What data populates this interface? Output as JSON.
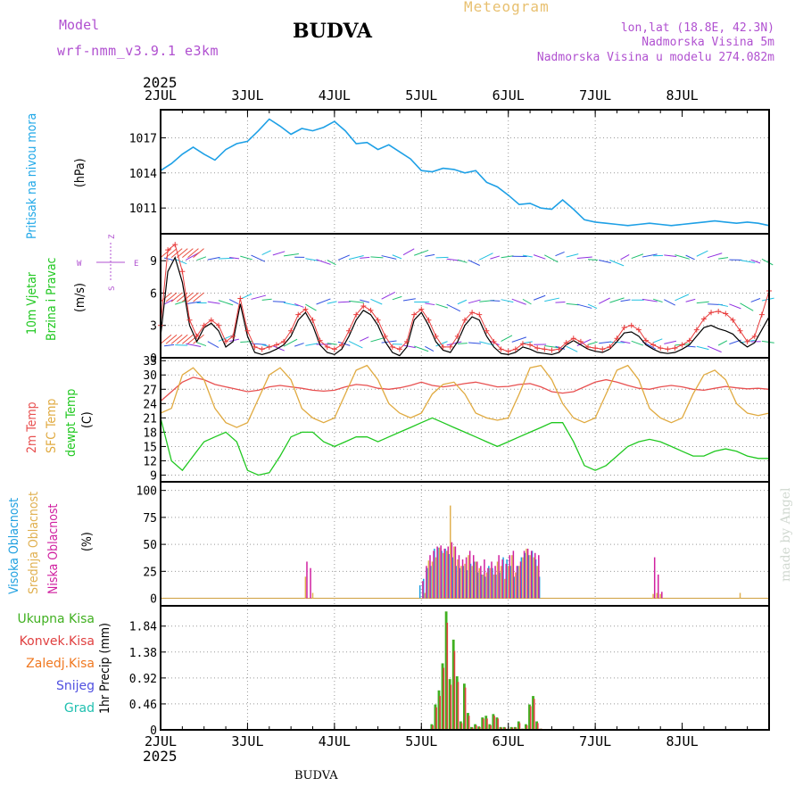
{
  "header": {
    "model_label": "Model",
    "model_name": "wrf-nmm_v3.9.1 e3km",
    "station": "BUDVA",
    "product": "Meteogram",
    "coords": "lon,lat (18.8E, 42.3N)",
    "elevation": "Nadmorska Visina 5m",
    "model_elevation": "Nadmorska Visina u modelu 274.082m",
    "footer_station": "BUDVA",
    "watermark": "made by Angel"
  },
  "time_axis": {
    "year": "2025",
    "labels": [
      "2JUL",
      "3JUL",
      "4JUL",
      "5JUL",
      "6JUL",
      "7JUL",
      "8JUL"
    ]
  },
  "colors": {
    "pressure": "#1ea0e6",
    "wind_speed": "#000000",
    "wind_gust": "#e83c3c",
    "temp2m": "#e85050",
    "sfc_temp": "#e0aa40",
    "dewpoint": "#20c820",
    "cloud_high": "#20a0e0",
    "cloud_mid": "#e0b050",
    "cloud_low": "#d020a0",
    "precip_total": "#40b020",
    "precip_conv": "#e04040",
    "precip_frz": "#f07820",
    "snow": "#5050e0",
    "graupel": "#20c0b0",
    "model_label": "#b050d0",
    "product": "#e8c070"
  },
  "panels": {
    "pressure": {
      "label": "Pritisak na nivou mora",
      "unit": "(hPa)",
      "ticks": [
        "1017",
        "1014",
        "1011"
      ]
    },
    "wind": {
      "label1": "10m Vjetar",
      "label2": "Brzina i Pravac",
      "unit": "(m/s)",
      "ticks": [
        "9",
        "6",
        "3",
        "0"
      ],
      "compass_z": "Z",
      "compass_w": "W",
      "compass_e": "E",
      "compass_s": "S"
    },
    "temp": {
      "label1": "2m Temp",
      "label2": "SFC Temp",
      "label3": "dewpt Temp",
      "unit": "(C)",
      "ticks": [
        "33",
        "30",
        "27",
        "24",
        "21",
        "18",
        "15",
        "12",
        "9"
      ]
    },
    "cloud": {
      "label1": "Visoka Oblacnost",
      "label2": "Srednja Oblacnost",
      "label3": "Niska Oblacnost",
      "unit": "(%)",
      "ticks": [
        "100",
        "75",
        "50",
        "25",
        "0"
      ]
    },
    "precip": {
      "legend": [
        "Ukupna Kisa",
        "Konvek.Kisa",
        "Zaledj.Kisa",
        "Snijeg",
        "Grad"
      ],
      "label": "1hr Precip (mm)",
      "ticks": [
        "1.84",
        "1.38",
        "0.92",
        "0.46",
        "0"
      ]
    }
  },
  "chart_data": [
    {
      "type": "line",
      "title": "Pritisak na nivou mora",
      "ylabel": "(hPa)",
      "ylim": [
        1008.8,
        1019.4
      ],
      "x_hours": [
        0,
        3,
        6,
        9,
        12,
        15,
        18,
        21,
        24,
        27,
        30,
        33,
        36,
        39,
        42,
        45,
        48,
        51,
        54,
        57,
        60,
        63,
        66,
        69,
        72,
        75,
        78,
        81,
        84,
        87,
        90,
        93,
        96,
        99,
        102,
        105,
        108,
        111,
        114,
        117,
        120,
        123,
        126,
        129,
        132,
        135,
        138,
        141,
        144,
        147,
        150,
        153,
        156,
        159,
        162,
        165,
        168
      ],
      "series": [
        {
          "name": "SLP",
          "values": [
            1014.2,
            1014.8,
            1015.6,
            1016.2,
            1015.6,
            1015.1,
            1016.0,
            1016.5,
            1016.7,
            1017.6,
            1018.6,
            1018.0,
            1017.3,
            1017.8,
            1017.6,
            1017.9,
            1018.4,
            1017.6,
            1016.5,
            1016.6,
            1016.0,
            1016.4,
            1015.8,
            1015.2,
            1014.2,
            1014.1,
            1014.4,
            1014.3,
            1014.0,
            1014.2,
            1013.2,
            1012.8,
            1012.1,
            1011.3,
            1011.4,
            1011.0,
            1010.9,
            1011.7,
            1010.9,
            1010.0,
            1009.8,
            1009.7,
            1009.6,
            1009.5,
            1009.6,
            1009.7,
            1009.6,
            1009.5,
            1009.6,
            1009.7,
            1009.8,
            1009.9,
            1009.8,
            1009.7,
            1009.8,
            1009.7,
            1009.5
          ]
        }
      ]
    },
    {
      "type": "line",
      "title": "10m Vjetar Brzina i Pravac",
      "ylabel": "(m/s)",
      "ylim": [
        0,
        11.5
      ],
      "x_hours": [
        0,
        2,
        4,
        6,
        8,
        10,
        12,
        14,
        16,
        18,
        20,
        22,
        24,
        26,
        28,
        30,
        32,
        34,
        36,
        38,
        40,
        42,
        44,
        46,
        48,
        50,
        52,
        54,
        56,
        58,
        60,
        62,
        64,
        66,
        68,
        70,
        72,
        74,
        76,
        78,
        80,
        82,
        84,
        86,
        88,
        90,
        92,
        94,
        96,
        98,
        100,
        102,
        104,
        106,
        108,
        110,
        112,
        114,
        116,
        118,
        120,
        122,
        124,
        126,
        128,
        130,
        132,
        134,
        136,
        138,
        140,
        142,
        144,
        146,
        148,
        150,
        152,
        154,
        156,
        158,
        160,
        162,
        164,
        166,
        168
      ],
      "series": [
        {
          "name": "speed",
          "values": [
            2,
            8,
            9.3,
            7,
            3,
            1.5,
            2.8,
            3.2,
            2.5,
            1,
            1.5,
            5,
            2,
            0.5,
            0.3,
            0.5,
            0.8,
            1.2,
            2,
            3.5,
            4.2,
            3,
            1.2,
            0.5,
            0.3,
            0.8,
            2,
            3.5,
            4.4,
            4,
            3,
            1.5,
            0.5,
            0.2,
            1,
            3.5,
            4.2,
            3,
            1.5,
            0.7,
            0.5,
            1.5,
            3,
            3.8,
            3.5,
            2,
            1,
            0.4,
            0.3,
            0.5,
            1,
            0.8,
            0.5,
            0.4,
            0.3,
            0.5,
            1.2,
            1.6,
            1.2,
            0.8,
            0.6,
            0.5,
            0.8,
            1.5,
            2.3,
            2.4,
            2,
            1.2,
            0.8,
            0.5,
            0.4,
            0.5,
            0.8,
            1.2,
            2,
            2.8,
            3,
            2.7,
            2.5,
            2.2,
            1.5,
            1,
            1.4,
            2.6,
            3.8
          ]
        },
        {
          "name": "gust",
          "values": [
            3,
            10,
            10.5,
            8,
            3.5,
            2,
            3,
            3.5,
            3,
            1.5,
            2,
            5.5,
            2.5,
            1,
            0.8,
            1,
            1.2,
            1.5,
            2.5,
            4,
            4.5,
            3.5,
            1.6,
            1,
            0.8,
            1.2,
            2.5,
            4,
            4.8,
            4.4,
            3.5,
            2,
            1,
            0.8,
            1.5,
            4,
            4.5,
            3.5,
            2,
            1,
            1,
            2,
            3.5,
            4.2,
            4,
            2.5,
            1.5,
            0.8,
            0.6,
            0.8,
            1.3,
            1.2,
            0.9,
            0.8,
            0.7,
            0.8,
            1.4,
            1.8,
            1.5,
            1,
            0.9,
            0.8,
            1,
            1.8,
            2.8,
            3,
            2.6,
            1.6,
            1.2,
            0.9,
            0.8,
            0.9,
            1.2,
            1.6,
            2.6,
            3.6,
            4.2,
            4.3,
            4.1,
            3.5,
            2.5,
            1.5,
            2,
            4,
            6.2
          ]
        }
      ]
    },
    {
      "type": "line",
      "title": "2m Temp / SFC Temp / dewpt Temp",
      "ylabel": "(C)",
      "ylim": [
        7.6,
        33.6
      ],
      "x_hours": [
        0,
        3,
        6,
        9,
        12,
        15,
        18,
        21,
        24,
        27,
        30,
        33,
        36,
        39,
        42,
        45,
        48,
        51,
        54,
        57,
        60,
        63,
        66,
        69,
        72,
        75,
        78,
        81,
        84,
        87,
        90,
        93,
        96,
        99,
        102,
        105,
        108,
        111,
        114,
        117,
        120,
        123,
        126,
        129,
        132,
        135,
        138,
        141,
        144,
        147,
        150,
        153,
        156,
        159,
        162,
        165,
        168
      ],
      "series": [
        {
          "name": "2m Temp",
          "values": [
            24.5,
            26.5,
            28.5,
            29.5,
            29,
            28,
            27.5,
            27,
            26.5,
            26.8,
            27.5,
            27.8,
            27.5,
            27.2,
            26.8,
            26.6,
            26.8,
            27.5,
            28,
            27.8,
            27.2,
            27,
            27.3,
            27.8,
            28.5,
            27.8,
            27.5,
            27.8,
            28.2,
            28.5,
            28,
            27.5,
            27.6,
            28,
            28.2,
            27.5,
            26.5,
            26.2,
            26.5,
            27.5,
            28.5,
            29,
            28.5,
            27.8,
            27.2,
            27,
            27.5,
            27.8,
            27.5,
            27,
            26.8,
            27.2,
            27.6,
            27.3,
            27.1,
            27.2,
            27.0
          ]
        },
        {
          "name": "SFC Temp",
          "values": [
            22,
            23,
            30,
            31.5,
            29,
            23,
            20,
            19,
            20,
            25,
            30,
            31.5,
            29,
            23,
            21,
            20,
            21,
            26,
            31,
            32,
            29,
            24,
            22,
            21,
            22,
            26,
            28,
            28.5,
            26,
            22,
            21,
            20.5,
            21,
            26,
            31.5,
            32,
            29,
            24,
            21,
            20,
            21,
            26,
            31,
            32,
            29,
            23,
            21,
            20,
            21,
            26,
            30,
            31,
            29,
            24,
            22,
            21.5,
            22
          ]
        },
        {
          "name": "dewpt Temp",
          "values": [
            21,
            12,
            10,
            13,
            16,
            17,
            18,
            16,
            10,
            9,
            9.5,
            13,
            17,
            18,
            18,
            16,
            15,
            16,
            17,
            17,
            16,
            17,
            18,
            19,
            20,
            21,
            20,
            19,
            18,
            17,
            16,
            15,
            16,
            17,
            18,
            19,
            20,
            20,
            16,
            11,
            10,
            11,
            13,
            15,
            16,
            16.5,
            16,
            15,
            14,
            13,
            13,
            14,
            14.5,
            14,
            13,
            12.5,
            12.5
          ]
        }
      ]
    },
    {
      "type": "bar",
      "title": "Visoka / Srednja / Niska Oblacnost",
      "ylabel": "(%)",
      "ylim": [
        0,
        100
      ],
      "x_hours": [
        40,
        41,
        42,
        72,
        73,
        74,
        75,
        76,
        77,
        78,
        79,
        80,
        81,
        82,
        83,
        84,
        85,
        86,
        87,
        88,
        89,
        90,
        91,
        92,
        93,
        94,
        95,
        96,
        97,
        98,
        99,
        100,
        101,
        102,
        103,
        104,
        105,
        106,
        136,
        137,
        138,
        160
      ],
      "series": [
        {
          "name": "Visoka Oblacnost",
          "values": [
            0,
            0,
            0,
            12,
            18,
            28,
            30,
            46,
            47,
            44,
            46,
            41,
            38,
            30,
            28,
            30,
            26,
            32,
            34,
            24,
            22,
            20,
            30,
            28,
            22,
            24,
            38,
            36,
            30,
            20,
            30,
            38,
            42,
            40,
            44,
            36,
            20,
            0,
            0,
            0,
            0,
            0
          ]
        },
        {
          "name": "Srednja Oblacnost",
          "values": [
            20,
            0,
            5,
            0,
            5,
            35,
            34,
            38,
            47,
            42,
            44,
            86,
            48,
            36,
            30,
            32,
            40,
            30,
            34,
            28,
            22,
            24,
            28,
            22,
            34,
            30,
            18,
            30,
            40,
            24,
            30,
            38,
            46,
            40,
            38,
            30,
            0,
            0,
            4,
            5,
            4,
            5
          ]
        },
        {
          "name": "Niska Oblacnost",
          "values": [
            34,
            28,
            0,
            16,
            30,
            40,
            44,
            48,
            49,
            46,
            48,
            52,
            48,
            40,
            36,
            38,
            44,
            40,
            34,
            30,
            36,
            28,
            34,
            30,
            40,
            36,
            32,
            40,
            44,
            30,
            34,
            44,
            46,
            44,
            42,
            40,
            0,
            0,
            38,
            22,
            6,
            0
          ]
        }
      ]
    },
    {
      "type": "bar",
      "title": "1hr Precip",
      "ylabel": "(mm)",
      "ylim": [
        0,
        2.2
      ],
      "x_hours": [
        75,
        76,
        77,
        78,
        79,
        80,
        81,
        82,
        83,
        84,
        85,
        86,
        87,
        88,
        89,
        90,
        91,
        92,
        93,
        94,
        95,
        96,
        97,
        98,
        99,
        100,
        101,
        102,
        103,
        104,
        105,
        106
      ],
      "series": [
        {
          "name": "Ukupna Kisa",
          "values": [
            0.1,
            0.45,
            0.7,
            1.18,
            2.1,
            0.9,
            1.6,
            0.95,
            0.15,
            0.82,
            0.3,
            0.05,
            0.1,
            0.06,
            0.22,
            0.25,
            0.1,
            0.28,
            0.22,
            0.05,
            0.05,
            0.02,
            0.05,
            0.05,
            0.15,
            0.02,
            0.1,
            0.45,
            0.6,
            0.15,
            0.02,
            0.0
          ]
        },
        {
          "name": "Konvek.Kisa",
          "values": [
            0.08,
            0.4,
            0.6,
            1.1,
            1.9,
            0.8,
            1.4,
            0.85,
            0.12,
            0.75,
            0.25,
            0.04,
            0.08,
            0.05,
            0.2,
            0.2,
            0.08,
            0.25,
            0.2,
            0.04,
            0.04,
            0.02,
            0.04,
            0.04,
            0.12,
            0.02,
            0.08,
            0.42,
            0.55,
            0.12,
            0.02,
            0.0
          ]
        }
      ]
    }
  ]
}
